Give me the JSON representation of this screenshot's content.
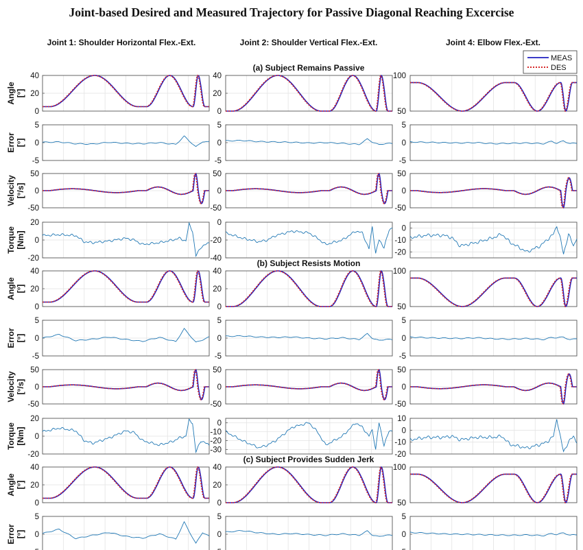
{
  "figure": {
    "title": "Joint-based Desired and Measured Trajectory for Passive Diagonal Reaching Excercise",
    "column_titles": [
      "Joint 1: Shoulder Horizontal Flex.-Ext.",
      "Joint 2: Shoulder Vertical Flex.-Ext.",
      "Joint 4: Elbow Flex.-Ext."
    ],
    "section_titles": [
      "(a) Subject Remains Passive",
      "(b) Subject Resists Motion",
      "(c) Subject Provides Sudden Jerk"
    ],
    "legend": {
      "meas": "MEAS",
      "des": "DES",
      "placement": "top-right"
    },
    "row_labels": {
      "angle": [
        "Angle",
        "[°]"
      ],
      "error": [
        "Error",
        "[°]"
      ],
      "velocity": [
        "Velocity",
        "[°/s]"
      ],
      "torque": [
        "Torque",
        "[Nm]"
      ]
    },
    "colors": {
      "meas": "#1f1fbf",
      "des": "#d62728",
      "signal": "#1f77b4",
      "grid": "#e3e3e3",
      "axis": "#555555"
    }
  },
  "chart_data": {
    "type": "line",
    "x_range": [
      0,
      1
    ],
    "grid": true,
    "note_x": "no x-axis tick labels are printed",
    "panels": {
      "angle": {
        "ylim": [
          [
            0,
            40
          ],
          [
            0,
            40
          ],
          [
            50,
            100
          ]
        ],
        "yticks": [
          [
            0,
            20,
            40
          ],
          [
            0,
            20,
            40
          ],
          [
            50,
            100
          ]
        ],
        "range": [
          [
            5,
            40
          ],
          [
            0,
            40
          ],
          [
            50,
            90
          ]
        ],
        "series": [
          "MEAS",
          "DES"
        ]
      },
      "error": {
        "ylim": [
          [
            -5,
            5
          ],
          [
            -5,
            5
          ],
          [
            -5,
            5
          ]
        ],
        "yticks": [
          [
            -5,
            0,
            5
          ],
          [
            -5,
            0,
            5
          ],
          [
            -5,
            0,
            5
          ]
        ]
      },
      "velocity": {
        "ylim": [
          [
            -50,
            50
          ],
          [
            -50,
            50
          ],
          [
            -50,
            50
          ]
        ],
        "yticks": [
          [
            -50,
            0,
            50
          ],
          [
            -50,
            0,
            50
          ],
          [
            -50,
            0,
            50
          ]
        ],
        "series": [
          "MEAS",
          "DES"
        ]
      },
      "torque": {
        "a": {
          "ylim": [
            [
              -20,
              20
            ],
            [
              -40,
              0
            ],
            [
              -25,
              5
            ]
          ],
          "yticks": [
            [
              -20,
              0,
              20
            ],
            [
              -40,
              -20,
              0
            ],
            [
              -20,
              -10,
              0
            ]
          ]
        },
        "b": {
          "ylim": [
            [
              -20,
              20
            ],
            [
              -35,
              5
            ],
            [
              -20,
              10
            ]
          ],
          "yticks": [
            [
              -20,
              0,
              20
            ],
            [
              -30,
              -20,
              -10,
              0
            ],
            [
              -20,
              -10,
              0,
              10
            ]
          ]
        }
      }
    },
    "trajectory_keypoints": {
      "x": [
        0,
        0.04,
        0.31,
        0.57,
        0.62,
        0.76,
        0.9,
        0.93,
        0.97,
        1.0
      ],
      "normalized_position": [
        0,
        0,
        1,
        0,
        0,
        1,
        0,
        1,
        0,
        0
      ]
    },
    "error_series": {
      "x": [
        0,
        0.1,
        0.2,
        0.3,
        0.4,
        0.5,
        0.6,
        0.7,
        0.8,
        0.85,
        0.88,
        0.92,
        0.96,
        1.0
      ],
      "a": [
        [
          0.1,
          0.2,
          -0.3,
          -0.4,
          0.1,
          -0.2,
          -0.3,
          0.0,
          -0.5,
          1.8,
          0.5,
          -1.2,
          0.3,
          0.2
        ],
        [
          0.5,
          0.6,
          0.3,
          0.2,
          0.1,
          -0.1,
          0.0,
          -0.2,
          -0.5,
          1.0,
          0.2,
          -0.6,
          -0.2,
          -0.3
        ],
        [
          0.2,
          0.1,
          0.0,
          -0.1,
          0.0,
          -0.3,
          -0.2,
          -0.1,
          -0.3,
          0.4,
          -0.2,
          0.5,
          -0.3,
          -0.1
        ]
      ],
      "b": [
        [
          0.0,
          1.0,
          -0.7,
          -0.3,
          0.3,
          -0.4,
          -0.9,
          0.2,
          -1.0,
          2.6,
          1.0,
          -1.2,
          -0.5,
          0.3
        ],
        [
          0.5,
          0.6,
          0.3,
          0.2,
          0.3,
          0.0,
          -0.2,
          0.1,
          -0.4,
          1.2,
          0.0,
          -0.7,
          -0.3,
          -0.5
        ],
        [
          0.3,
          0.1,
          0.0,
          -0.1,
          0.1,
          -0.2,
          -0.3,
          -0.1,
          -0.4,
          0.2,
          0.1,
          0.3,
          -0.5,
          -0.1
        ]
      ],
      "c": [
        [
          0.2,
          1.4,
          -1.2,
          -0.3,
          0.5,
          -0.6,
          -1.1,
          0.1,
          -1.4,
          3.4,
          0.8,
          -2.6,
          0.5,
          -0.6
        ],
        [
          0.6,
          1.0,
          0.4,
          0.0,
          0.2,
          -0.1,
          -0.3,
          0.1,
          -0.3,
          0.9,
          -0.2,
          -0.7,
          -0.2,
          -0.4
        ],
        [
          0.5,
          0.3,
          0.1,
          0.0,
          -0.1,
          -0.2,
          -0.3,
          -0.2,
          -0.4,
          0.2,
          -0.1,
          0.4,
          -0.3,
          -0.1
        ]
      ]
    },
    "torque_series": {
      "x": [
        0,
        0.1,
        0.2,
        0.25,
        0.3,
        0.4,
        0.5,
        0.55,
        0.6,
        0.7,
        0.78,
        0.82,
        0.86,
        0.88,
        0.9,
        0.92,
        0.95,
        0.98,
        1.0
      ],
      "a": [
        [
          5,
          6,
          5,
          -2,
          -3,
          -1,
          2,
          0,
          -5,
          -3,
          0,
          2,
          -1,
          18,
          10,
          -18,
          -8,
          -5,
          -3
        ],
        [
          -12,
          -18,
          -22,
          -20,
          -15,
          -10,
          -12,
          -18,
          -25,
          -20,
          -10,
          -12,
          -30,
          -5,
          -35,
          -20,
          -28,
          -10,
          -5
        ],
        [
          -8,
          -6,
          -6,
          -8,
          -15,
          -12,
          -8,
          -5,
          -12,
          -20,
          -15,
          -10,
          -5,
          2,
          -8,
          -22,
          -5,
          -15,
          -8
        ]
      ],
      "b": [
        [
          5,
          9,
          6,
          -5,
          -8,
          -2,
          6,
          4,
          -5,
          -10,
          -6,
          -2,
          0,
          18,
          15,
          -18,
          -5,
          -8,
          -10
        ],
        [
          -10,
          -20,
          -28,
          -25,
          -20,
          -5,
          0,
          -10,
          -25,
          -15,
          0,
          -5,
          -15,
          -8,
          -30,
          0,
          -25,
          -10,
          -8
        ],
        [
          -8,
          -6,
          -6,
          -5,
          -8,
          -6,
          -6,
          -5,
          -12,
          -15,
          -12,
          -10,
          -5,
          10,
          -5,
          -18,
          -10,
          -5,
          -10
        ]
      ]
    }
  }
}
